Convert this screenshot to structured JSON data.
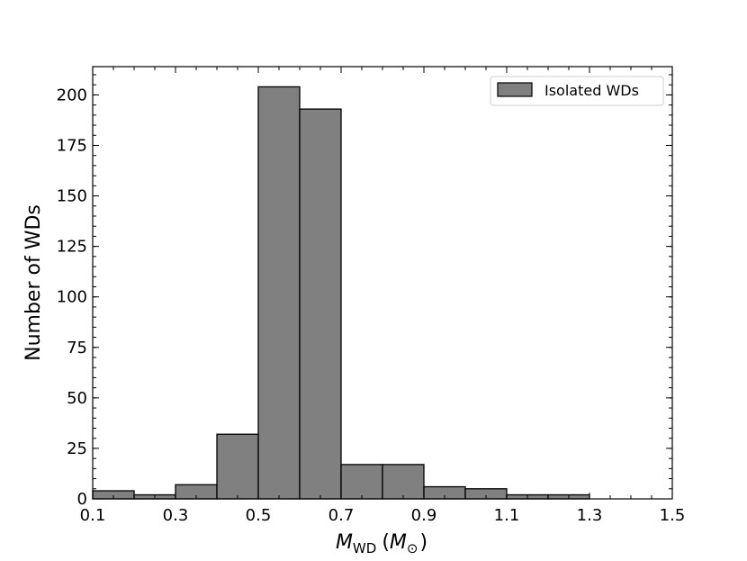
{
  "chart_data": {
    "type": "bar",
    "bin_edges": [
      0.1,
      0.2,
      0.3,
      0.4,
      0.5,
      0.6,
      0.7,
      0.8,
      0.9,
      1.0,
      1.1,
      1.2,
      1.3
    ],
    "values": [
      4,
      2,
      7,
      32,
      204,
      193,
      17,
      17,
      6,
      5,
      2,
      2
    ],
    "series_name": "Isolated WDs",
    "xlabel_symbol": "M",
    "xlabel_sub": "WD",
    "xlabel_unit_open": "(",
    "xlabel_unit_symbol": "M",
    "xlabel_unit_sub": "⊙",
    "xlabel_unit_close": ")",
    "ylabel": "Number of WDs",
    "xlim": [
      0.1,
      1.5
    ],
    "ylim": [
      0,
      214
    ],
    "xticks": [
      "0.1",
      "0.3",
      "0.5",
      "0.7",
      "0.9",
      "1.1",
      "1.3",
      "1.5"
    ],
    "xtick_values": [
      0.1,
      0.3,
      0.5,
      0.7,
      0.9,
      1.1,
      1.3,
      1.5
    ],
    "yticks": [
      "0",
      "25",
      "50",
      "75",
      "100",
      "125",
      "150",
      "175",
      "200"
    ],
    "ytick_values": [
      0,
      25,
      50,
      75,
      100,
      125,
      150,
      175,
      200
    ],
    "bar_color": "#808080",
    "edge_color": "#000000",
    "legend_position": "top-right",
    "grid": false
  }
}
